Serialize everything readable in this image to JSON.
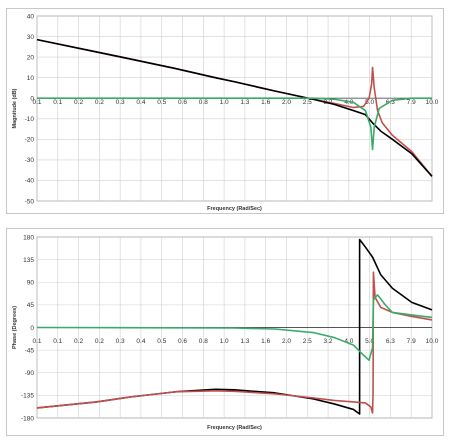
{
  "chart_data": [
    {
      "type": "line",
      "title": "",
      "xlabel": "Frequency (Rad/Sec)",
      "ylabel": "Magnitude (dB)",
      "ylim": [
        -50,
        40
      ],
      "y_ticks": [
        "40",
        "30",
        "20",
        "10",
        "0",
        "-10",
        "-20",
        "-30",
        "-40",
        "-50"
      ],
      "y_tick_values": [
        40,
        30,
        20,
        10,
        0,
        -10,
        -20,
        -30,
        -40,
        -50
      ],
      "x_scale": "log",
      "x_ticks": [
        "0.1",
        "0.1",
        "0.2",
        "0.2",
        "0.3",
        "0.4",
        "0.5",
        "0.6",
        "0.8",
        "1.0",
        "1.3",
        "1.6",
        "2.0",
        "2.5",
        "3.2",
        "4.0",
        "5.0",
        "6.3",
        "7.9",
        "10.0"
      ],
      "series": [
        {
          "color": "#c0504d",
          "points": [
            [
              0.1,
              28.5
            ],
            [
              0.2,
              22.5
            ],
            [
              0.3,
              19
            ],
            [
              0.5,
              14.5
            ],
            [
              0.8,
              10
            ],
            [
              1.0,
              8
            ],
            [
              1.3,
              5.5
            ],
            [
              1.6,
              3.5
            ],
            [
              2.0,
              1.5
            ],
            [
              2.5,
              -0.5
            ],
            [
              3.2,
              -2.5
            ],
            [
              4.0,
              -4.5
            ],
            [
              4.5,
              -4
            ],
            [
              4.8,
              0
            ],
            [
              4.95,
              7
            ],
            [
              5.0,
              15
            ],
            [
              5.1,
              5
            ],
            [
              5.3,
              -6
            ],
            [
              5.6,
              -12
            ],
            [
              6.3,
              -18
            ],
            [
              7.9,
              -26
            ],
            [
              10.0,
              -38
            ]
          ]
        },
        {
          "color": "#000000",
          "points": [
            [
              0.1,
              28.5
            ],
            [
              0.2,
              22.5
            ],
            [
              0.3,
              19
            ],
            [
              0.5,
              14.5
            ],
            [
              0.8,
              10
            ],
            [
              1.0,
              8
            ],
            [
              1.3,
              5.5
            ],
            [
              1.6,
              3.5
            ],
            [
              2.0,
              1.5
            ],
            [
              2.5,
              -0.5
            ],
            [
              3.2,
              -3
            ],
            [
              4.0,
              -6
            ],
            [
              4.6,
              -8
            ],
            [
              5.0,
              -12
            ],
            [
              5.5,
              -16
            ],
            [
              6.3,
              -20
            ],
            [
              7.9,
              -27
            ],
            [
              10.0,
              -38
            ]
          ]
        },
        {
          "color": "#3aaa6a",
          "points": [
            [
              0.1,
              0
            ],
            [
              2.5,
              0
            ],
            [
              3.2,
              -0.5
            ],
            [
              4.0,
              -2
            ],
            [
              4.6,
              -6
            ],
            [
              4.9,
              -14
            ],
            [
              5.0,
              -25
            ],
            [
              5.1,
              -14
            ],
            [
              5.4,
              -5
            ],
            [
              6.3,
              -1
            ],
            [
              7.9,
              0
            ],
            [
              10.0,
              0
            ]
          ]
        }
      ]
    },
    {
      "type": "line",
      "title": "",
      "xlabel": "Frequency (Rad/Sec)",
      "ylabel": "Phase (Degrees)",
      "ylim": [
        -180,
        180
      ],
      "y_ticks": [
        "180",
        "135",
        "90",
        "45",
        "0",
        "-45",
        "-90",
        "-135",
        "-180"
      ],
      "y_tick_values": [
        180,
        135,
        90,
        45,
        0,
        -45,
        -90,
        -135,
        -180
      ],
      "x_scale": "log",
      "x_ticks": [
        "0.1",
        "0.1",
        "0.2",
        "0.2",
        "0.3",
        "0.4",
        "0.5",
        "0.6",
        "0.8",
        "1.0",
        "1.3",
        "1.6",
        "2.0",
        "2.5",
        "3.2",
        "4.0",
        "5.0",
        "6.3",
        "7.9",
        "10.0"
      ],
      "series": [
        {
          "color": "#000000",
          "points": [
            [
              0.1,
              -160
            ],
            [
              0.2,
              -148
            ],
            [
              0.3,
              -138
            ],
            [
              0.5,
              -128
            ],
            [
              0.8,
              -123
            ],
            [
              1.0,
              -124
            ],
            [
              1.6,
              -130
            ],
            [
              2.5,
              -142
            ],
            [
              3.2,
              -152
            ],
            [
              4.0,
              -163
            ],
            [
              4.3,
              -172
            ],
            [
              4.3,
              175
            ],
            [
              4.6,
              160
            ],
            [
              5.0,
              140
            ],
            [
              5.5,
              105
            ],
            [
              6.3,
              78
            ],
            [
              7.9,
              50
            ],
            [
              10.0,
              35
            ]
          ]
        },
        {
          "color": "#c0504d",
          "points": [
            [
              0.1,
              -160
            ],
            [
              0.2,
              -148
            ],
            [
              0.3,
              -138
            ],
            [
              0.5,
              -128
            ],
            [
              0.8,
              -126
            ],
            [
              1.0,
              -127
            ],
            [
              1.6,
              -132
            ],
            [
              2.5,
              -140
            ],
            [
              3.2,
              -145
            ],
            [
              4.0,
              -148
            ],
            [
              4.6,
              -150
            ],
            [
              4.9,
              -158
            ],
            [
              5.0,
              -170
            ],
            [
              5.03,
              -130
            ],
            [
              5.05,
              110
            ],
            [
              5.15,
              60
            ],
            [
              5.5,
              40
            ],
            [
              6.3,
              30
            ],
            [
              7.9,
              22
            ],
            [
              10.0,
              15
            ]
          ]
        },
        {
          "color": "#3aaa6a",
          "points": [
            [
              0.1,
              0
            ],
            [
              1.0,
              -1
            ],
            [
              1.6,
              -3
            ],
            [
              2.5,
              -10
            ],
            [
              3.2,
              -20
            ],
            [
              4.0,
              -35
            ],
            [
              4.5,
              -55
            ],
            [
              4.8,
              -65
            ],
            [
              5.0,
              -40
            ],
            [
              5.05,
              55
            ],
            [
              5.3,
              65
            ],
            [
              5.8,
              45
            ],
            [
              6.3,
              30
            ],
            [
              7.9,
              25
            ],
            [
              10.0,
              20
            ]
          ]
        }
      ]
    }
  ]
}
